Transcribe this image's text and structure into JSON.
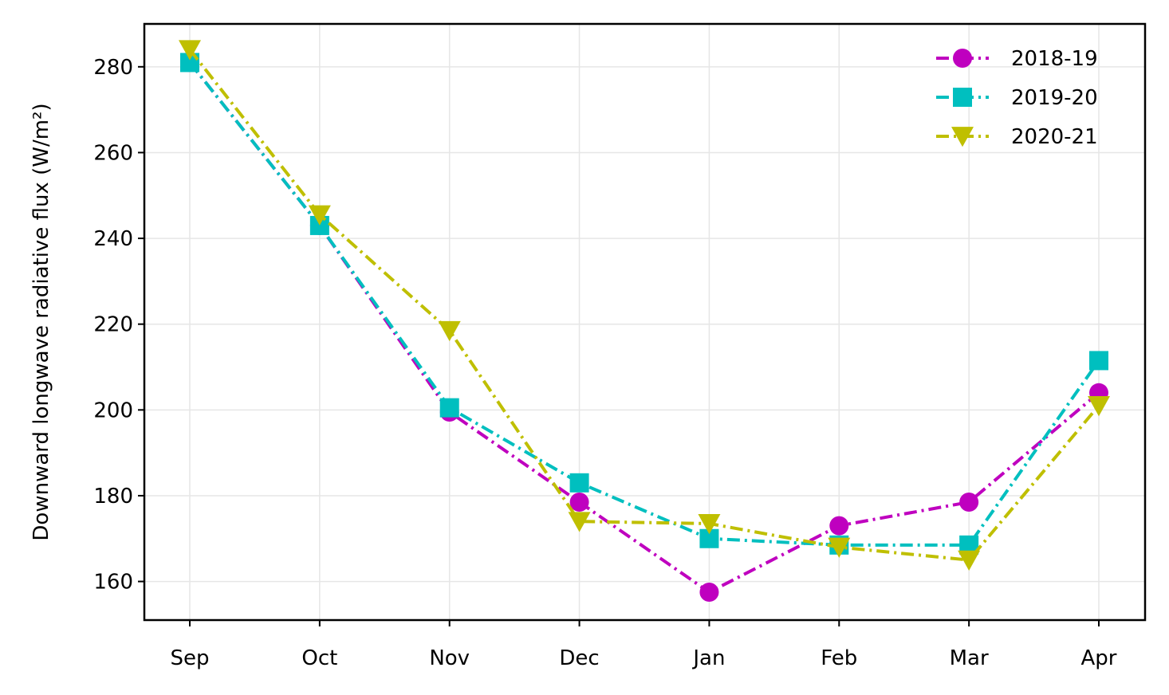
{
  "chart_data": {
    "type": "line",
    "categories": [
      "Sep",
      "Oct",
      "Nov",
      "Dec",
      "Jan",
      "Feb",
      "Mar",
      "Apr"
    ],
    "ylabel": "Downward longwave radiative flux (W/m²)",
    "ylim": [
      151,
      290
    ],
    "yticks": [
      160,
      180,
      200,
      220,
      240,
      260,
      280
    ],
    "grid": true,
    "legend": "top-right",
    "series": [
      {
        "name": "2018-19",
        "color": "#bf00bf",
        "marker": "circle",
        "values": [
          281,
          243,
          199.5,
          178.5,
          157.5,
          173,
          178.5,
          204
        ]
      },
      {
        "name": "2019-20",
        "color": "#00bfbf",
        "marker": "square",
        "values": [
          281,
          243,
          200.5,
          183,
          170,
          168.5,
          168.5,
          211.5
        ]
      },
      {
        "name": "2020-21",
        "color": "#bfbf00",
        "marker": "triangle-down",
        "values": [
          284,
          245.5,
          218.5,
          174,
          173.5,
          168,
          165,
          201
        ]
      }
    ]
  }
}
